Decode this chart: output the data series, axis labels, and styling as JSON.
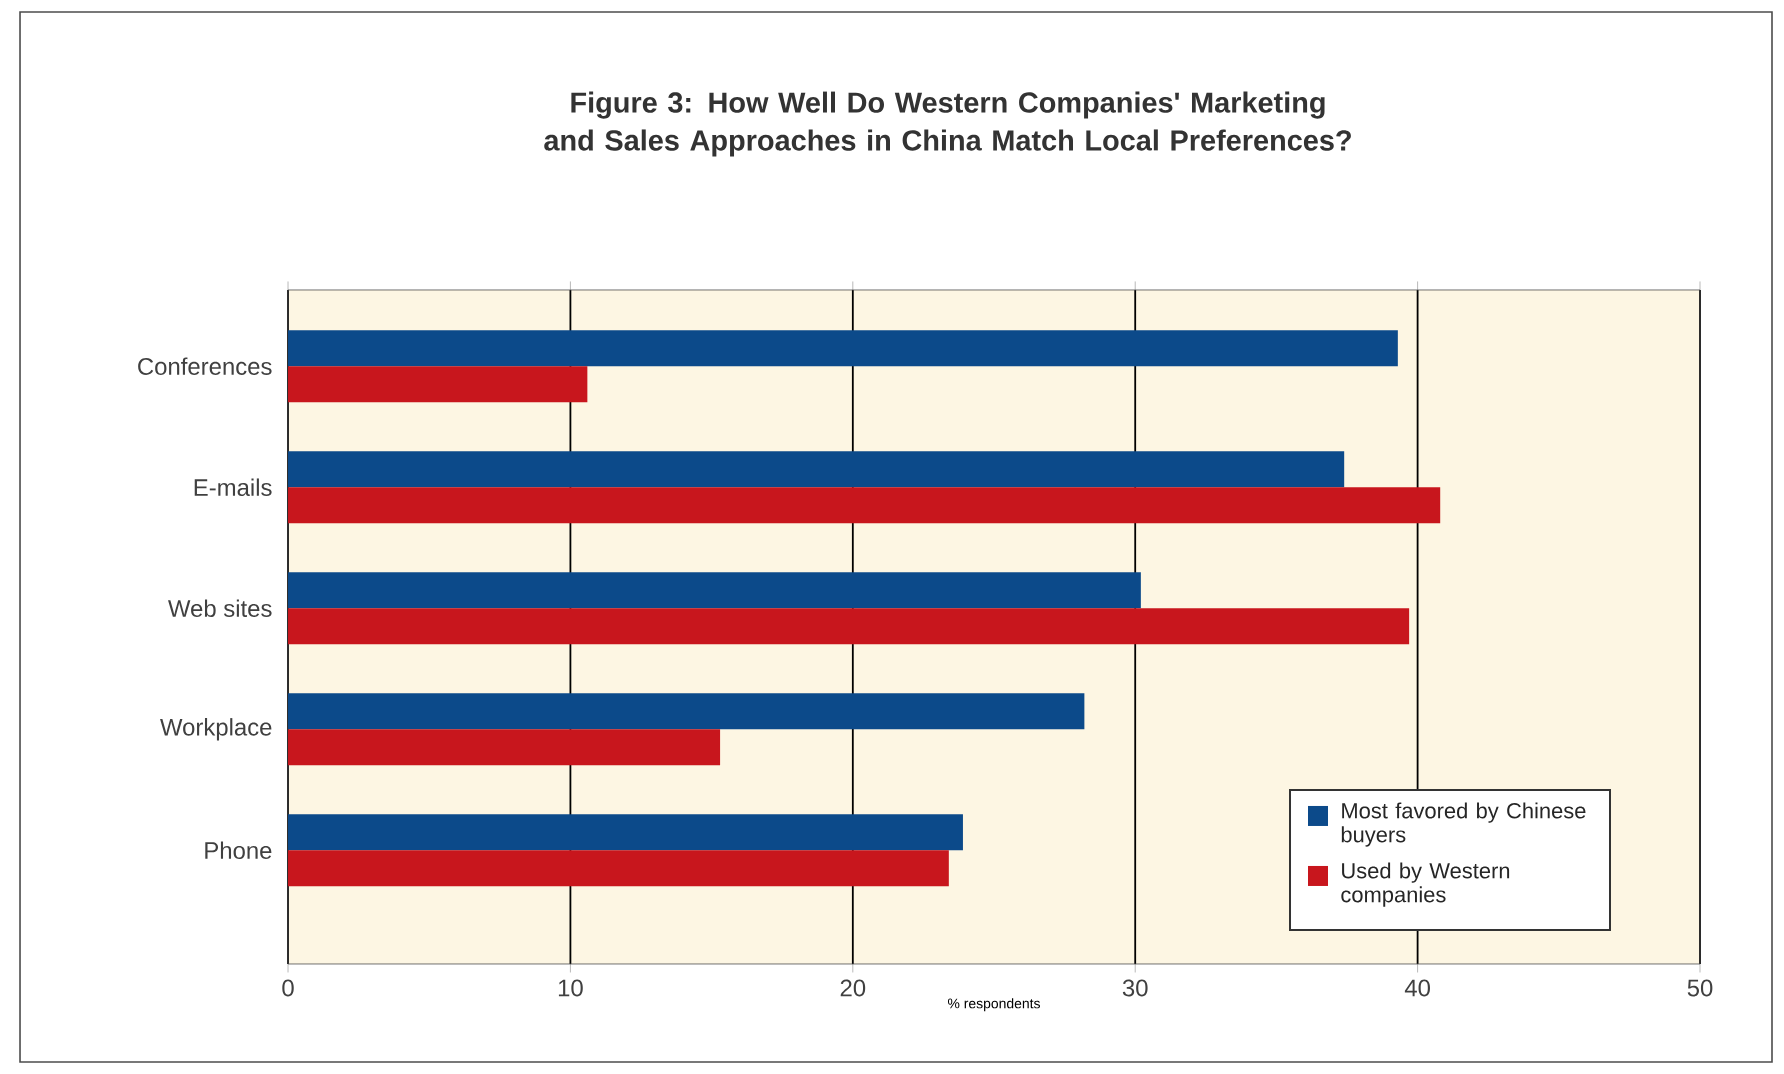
{
  "chart_data": {
    "type": "bar",
    "orientation": "horizontal",
    "title": "Figure 3: How Well Do Western Companies' Marketing and Sales Approaches in China Match Local Preferences?",
    "xlabel": "% respondents",
    "categories": [
      "Conferences",
      "E-mails",
      "Web sites",
      "Workplace",
      "Phone"
    ],
    "series": [
      {
        "name": "Most favored by Chinese buyers",
        "color": "#0c4a8a",
        "values": [
          39.3,
          37.4,
          30.2,
          28.2,
          23.9
        ]
      },
      {
        "name": "Used by Western companies",
        "color": "#c8161d",
        "values": [
          10.6,
          40.8,
          39.7,
          15.3,
          23.4
        ]
      }
    ],
    "xlim": [
      0,
      50
    ],
    "xticks": [
      0,
      10,
      20,
      30,
      40,
      50
    ],
    "grid": "x",
    "legend": "bottom right"
  }
}
